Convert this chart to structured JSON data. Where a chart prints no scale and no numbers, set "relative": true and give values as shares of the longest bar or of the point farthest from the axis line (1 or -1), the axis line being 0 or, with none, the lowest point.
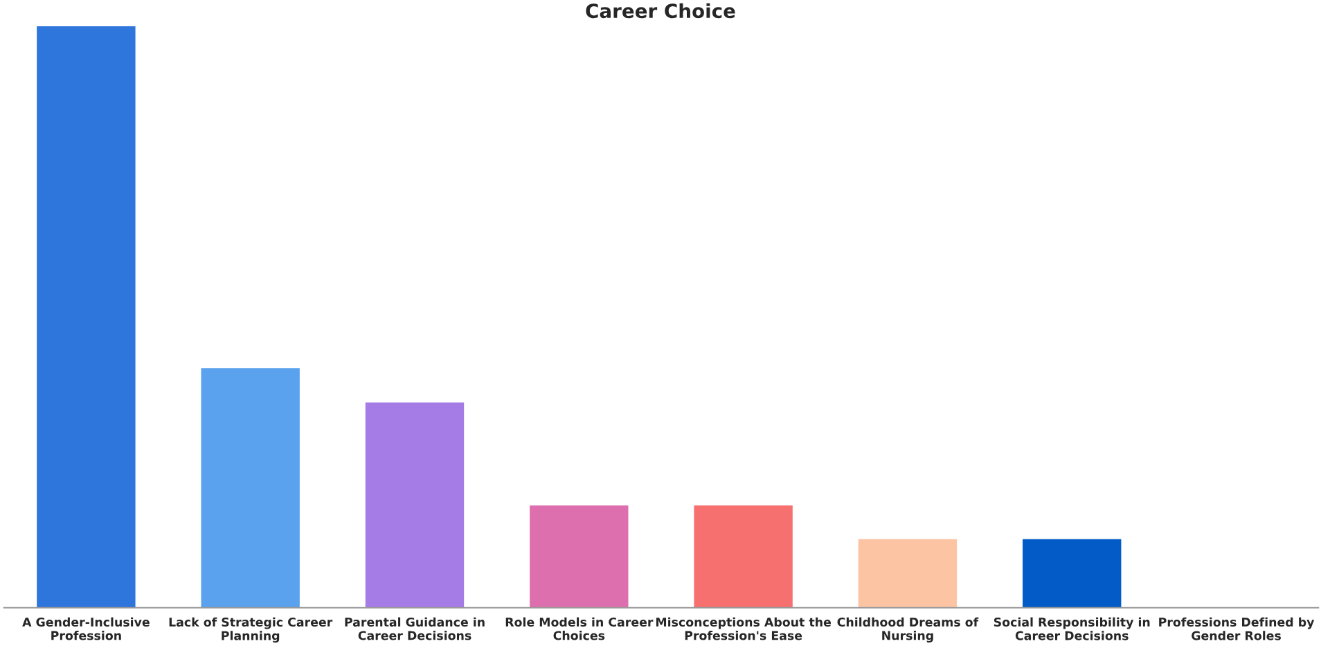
{
  "chart_data": {
    "type": "bar",
    "title": "Career Choice",
    "relative": true,
    "categories": [
      "A Gender-Inclusive Profession",
      "Lack of Strategic Career Planning",
      "Parental Guidance in Career Decisions",
      "Role Models in Career Choices",
      "Misconceptions About the Profession's Ease",
      "Childhood Dreams of Nursing",
      "Social Responsibility in Career Decisions",
      "Professions Defined by Gender Roles"
    ],
    "values": [
      1,
      0.412,
      0.353,
      0.176,
      0.176,
      0.118,
      0.118,
      0
    ],
    "colors": [
      "#2e75dc",
      "#5aa2ee",
      "#a57be6",
      "#dd6fae",
      "#f5706e",
      "#fdc4a3",
      "#025bc7",
      "#8ab4f8"
    ],
    "grid": false
  }
}
